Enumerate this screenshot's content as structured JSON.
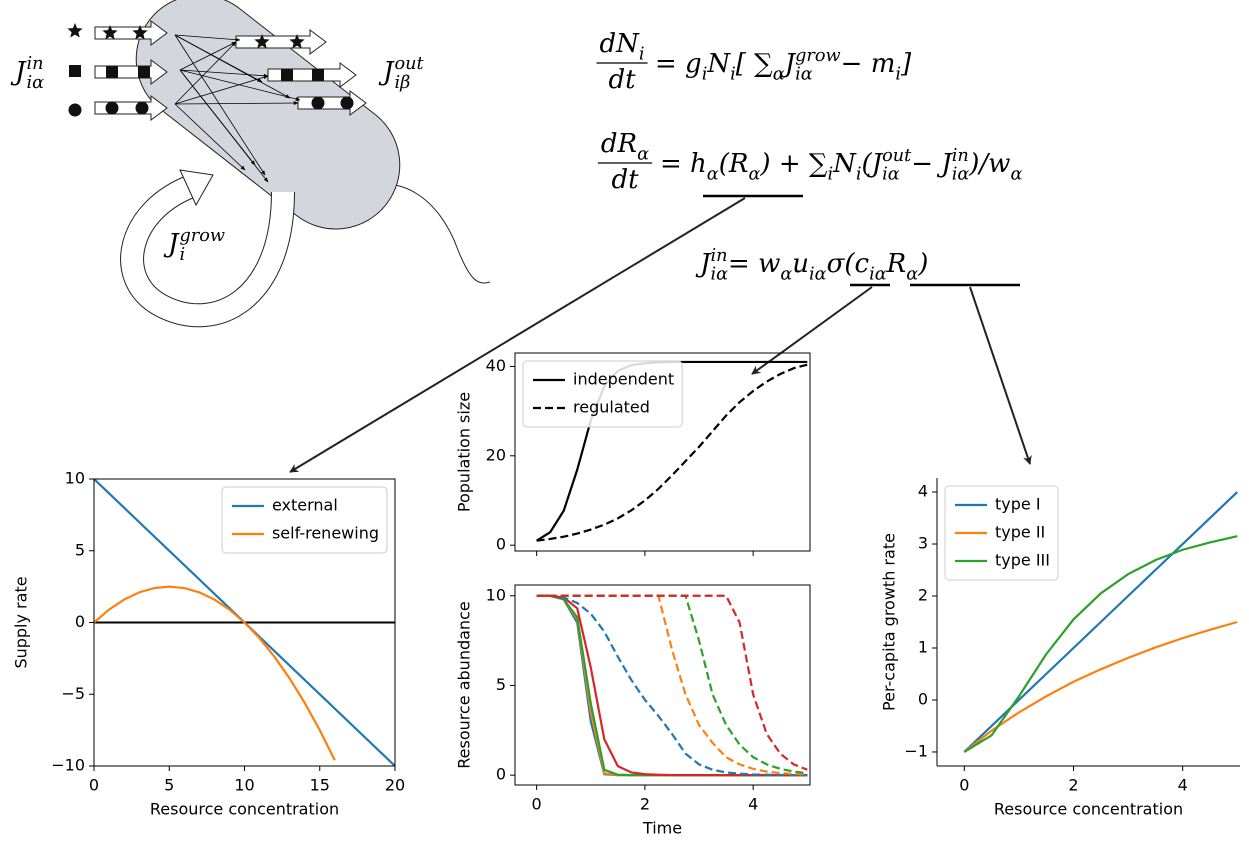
{
  "diagram": {
    "labels": [
      {
        "base": "J",
        "sub": "iα",
        "sup": "in"
      },
      {
        "base": "J",
        "sub": "iβ",
        "sup": "out"
      },
      {
        "base": "J",
        "sub": "i",
        "sup": "grow"
      }
    ]
  },
  "equations": [
    {
      "num": [
        [
          "dN",
          ""
        ],
        [
          "i",
          "sub"
        ]
      ],
      "den": [
        [
          "dt",
          ""
        ]
      ],
      "rhs": [
        [
          "= g",
          ""
        ],
        [
          "i",
          "sub"
        ],
        [
          "N",
          ""
        ],
        [
          "i",
          "sub"
        ],
        [
          " [ ∑",
          ""
        ],
        [
          "α",
          "sub"
        ],
        [
          " J",
          ""
        ],
        [
          "iα",
          "sub"
        ],
        [
          "grow",
          "sup"
        ],
        [
          " − m",
          ""
        ],
        [
          "i",
          "sub"
        ],
        [
          " ]",
          ""
        ]
      ]
    },
    {
      "num": [
        [
          "dR",
          ""
        ],
        [
          "α",
          "sub"
        ]
      ],
      "den": [
        [
          "dt",
          ""
        ]
      ],
      "rhs": [
        [
          "= h",
          ""
        ],
        [
          "α",
          "sub"
        ],
        [
          "(R",
          ""
        ],
        [
          "α",
          "sub"
        ],
        [
          ") + ∑",
          ""
        ],
        [
          "i",
          "sub"
        ],
        [
          " N",
          ""
        ],
        [
          "i",
          "sub"
        ],
        [
          "(J",
          ""
        ],
        [
          "iα",
          "sub"
        ],
        [
          "out",
          "sup"
        ],
        [
          " − J",
          ""
        ],
        [
          "iα",
          "sub"
        ],
        [
          "in",
          "sup"
        ],
        [
          ")/w",
          ""
        ],
        [
          "α",
          "sub"
        ]
      ]
    },
    {
      "rhs": [
        [
          "J",
          ""
        ],
        [
          "iα",
          "sub"
        ],
        [
          "in",
          "sup"
        ],
        [
          " = w",
          ""
        ],
        [
          "α",
          "sub"
        ],
        [
          "u",
          ""
        ],
        [
          "iα",
          "sub"
        ],
        [
          "σ(c",
          ""
        ],
        [
          "iα",
          "sub"
        ],
        [
          "R",
          ""
        ],
        [
          "α",
          "sub"
        ],
        [
          ")",
          ""
        ]
      ]
    }
  ],
  "chart_data": [
    {
      "type": "line",
      "xlabel": "Resource concentration",
      "ylabel": "Supply rate",
      "xlim": [
        0,
        20
      ],
      "ylim": [
        -10,
        10
      ],
      "xticks": [
        0,
        5,
        10,
        15,
        20
      ],
      "yticks": [
        {
          "value": -10,
          "label": "−10"
        },
        {
          "value": -5,
          "label": "−5"
        },
        0,
        5,
        10
      ],
      "hline": 0,
      "legend": "upper right",
      "series": [
        {
          "name": "external",
          "color": "#1f77b4",
          "x": [
            0,
            20
          ],
          "values": [
            10,
            -10
          ]
        },
        {
          "name": "self-renewing",
          "color": "#ff7f0e",
          "x": [
            0,
            1,
            2,
            3,
            4,
            5,
            6,
            7,
            8,
            9,
            10,
            11,
            12,
            13,
            14,
            15,
            16
          ],
          "values": [
            0,
            0.9,
            1.6,
            2.1,
            2.4,
            2.5,
            2.4,
            2.1,
            1.6,
            0.9,
            0,
            -1.1,
            -2.4,
            -3.9,
            -5.6,
            -7.5,
            -9.6
          ]
        }
      ]
    },
    {
      "type": "line",
      "ylabel": "Population size",
      "xlim": [
        -0.4,
        5.05
      ],
      "ylim": [
        -1.3,
        43
      ],
      "xticks": [
        0,
        2,
        4
      ],
      "xticklabels": false,
      "yticks": [
        0,
        20,
        40
      ],
      "legend": "upper left",
      "x": [
        0,
        0.25,
        0.5,
        0.75,
        1,
        1.25,
        1.5,
        1.75,
        2,
        2.25,
        2.5,
        2.75,
        3,
        3.25,
        3.5,
        3.75,
        4,
        4.25,
        4.5,
        4.75,
        5
      ],
      "series": [
        {
          "name": "independent",
          "color": "#000000",
          "values": [
            1,
            2.9,
            7.7,
            16.9,
            27.9,
            35.6,
            39,
            40.3,
            40.7,
            40.9,
            41,
            41,
            41,
            41,
            41,
            41,
            41,
            41,
            41,
            41,
            41
          ]
        },
        {
          "name": "regulated",
          "color": "#000000",
          "dash": true,
          "values": [
            1,
            1.4,
            1.9,
            2.6,
            3.5,
            4.6,
            6,
            7.8,
            10,
            12.6,
            15.6,
            18.8,
            22,
            25.5,
            29,
            32,
            34.5,
            36.6,
            38.3,
            39.6,
            40.4
          ]
        }
      ]
    },
    {
      "type": "line",
      "xlabel": "Time",
      "ylabel": "Resource abundance",
      "xlim": [
        -0.4,
        5.05
      ],
      "ylim": [
        -0.55,
        10.6
      ],
      "xticks": [
        0,
        2,
        4
      ],
      "yticks": [
        0,
        5,
        10
      ],
      "x": [
        0,
        0.25,
        0.5,
        0.75,
        1,
        1.25,
        1.5,
        1.75,
        2,
        2.25,
        2.5,
        2.75,
        3,
        3.25,
        3.5,
        3.75,
        4,
        4.25,
        4.5,
        4.75,
        5
      ],
      "series": [
        {
          "color": "#1f77b4",
          "values": [
            10,
            10,
            9.8,
            8.5,
            3,
            0.05,
            0,
            0,
            0,
            0,
            0,
            0,
            0,
            0,
            0,
            0,
            0,
            0,
            0,
            0,
            0
          ]
        },
        {
          "color": "#ff7f0e",
          "values": [
            10,
            10,
            9.8,
            8.7,
            3.5,
            0.1,
            0,
            0,
            0,
            0,
            0,
            0,
            0,
            0,
            0,
            0,
            0,
            0,
            0,
            0,
            0
          ]
        },
        {
          "color": "#2ca02c",
          "values": [
            10,
            10,
            9.8,
            8.8,
            4,
            0.3,
            0.02,
            0,
            0,
            0,
            0,
            0,
            0,
            0,
            0,
            0,
            0,
            0,
            0,
            0,
            0
          ]
        },
        {
          "color": "#d62728",
          "values": [
            10,
            10,
            9.9,
            9.3,
            6,
            2,
            0.5,
            0.15,
            0.05,
            0.02,
            0,
            0,
            0,
            0,
            0,
            0,
            0,
            0,
            0,
            0,
            0
          ]
        },
        {
          "color": "#1f77b4",
          "dash": true,
          "values": [
            10,
            10,
            9.9,
            9.6,
            9,
            8,
            6.6,
            5.3,
            4.2,
            3.3,
            2.3,
            1.2,
            0.6,
            0.3,
            0.15,
            0.08,
            0.04,
            0.02,
            0.01,
            0,
            0
          ]
        },
        {
          "color": "#ff7f0e",
          "dash": true,
          "values": [
            10,
            10,
            10,
            10,
            10,
            10,
            10,
            10,
            10,
            10,
            7,
            4.5,
            2.8,
            1.8,
            1,
            0.6,
            0.35,
            0.2,
            0.12,
            0.07,
            0.04
          ]
        },
        {
          "color": "#2ca02c",
          "dash": true,
          "values": [
            10,
            10,
            10,
            10,
            10,
            10,
            10,
            10,
            10,
            10,
            10,
            10,
            7.5,
            4.5,
            2.8,
            1.7,
            1,
            0.6,
            0.35,
            0.2,
            0.1
          ]
        },
        {
          "color": "#d62728",
          "dash": true,
          "values": [
            10,
            10,
            10,
            10,
            10,
            10,
            10,
            10,
            10,
            10,
            10,
            10,
            10,
            10,
            10,
            8.5,
            4.5,
            2.3,
            1.2,
            0.6,
            0.3
          ]
        }
      ]
    },
    {
      "type": "line",
      "xlabel": "Resource concentration",
      "ylabel": "Per-capita growth rate",
      "xlim": [
        -0.5,
        5.05
      ],
      "ylim": [
        -1.27,
        4.27
      ],
      "xticks": [
        0,
        2,
        4
      ],
      "yticks": [
        {
          "value": -1,
          "label": "−1"
        },
        0,
        1,
        2,
        3,
        4
      ],
      "spines": "open",
      "legend": "upper left",
      "x": [
        0,
        0.5,
        1,
        1.5,
        2,
        2.5,
        3,
        3.5,
        4,
        4.5,
        5
      ],
      "series": [
        {
          "name": "type I",
          "color": "#1f77b4",
          "values": [
            -1,
            -0.5,
            0,
            0.5,
            1,
            1.5,
            2,
            2.5,
            3,
            3.5,
            4
          ]
        },
        {
          "name": "type II",
          "color": "#ff7f0e",
          "values": [
            -1,
            -0.59,
            -0.24,
            0.07,
            0.35,
            0.59,
            0.81,
            1.01,
            1.19,
            1.35,
            1.5
          ]
        },
        {
          "name": "type III",
          "color": "#2ca02c",
          "values": [
            -1,
            -0.68,
            0.07,
            0.88,
            1.55,
            2.05,
            2.42,
            2.69,
            2.89,
            3.03,
            3.15
          ]
        }
      ]
    }
  ]
}
